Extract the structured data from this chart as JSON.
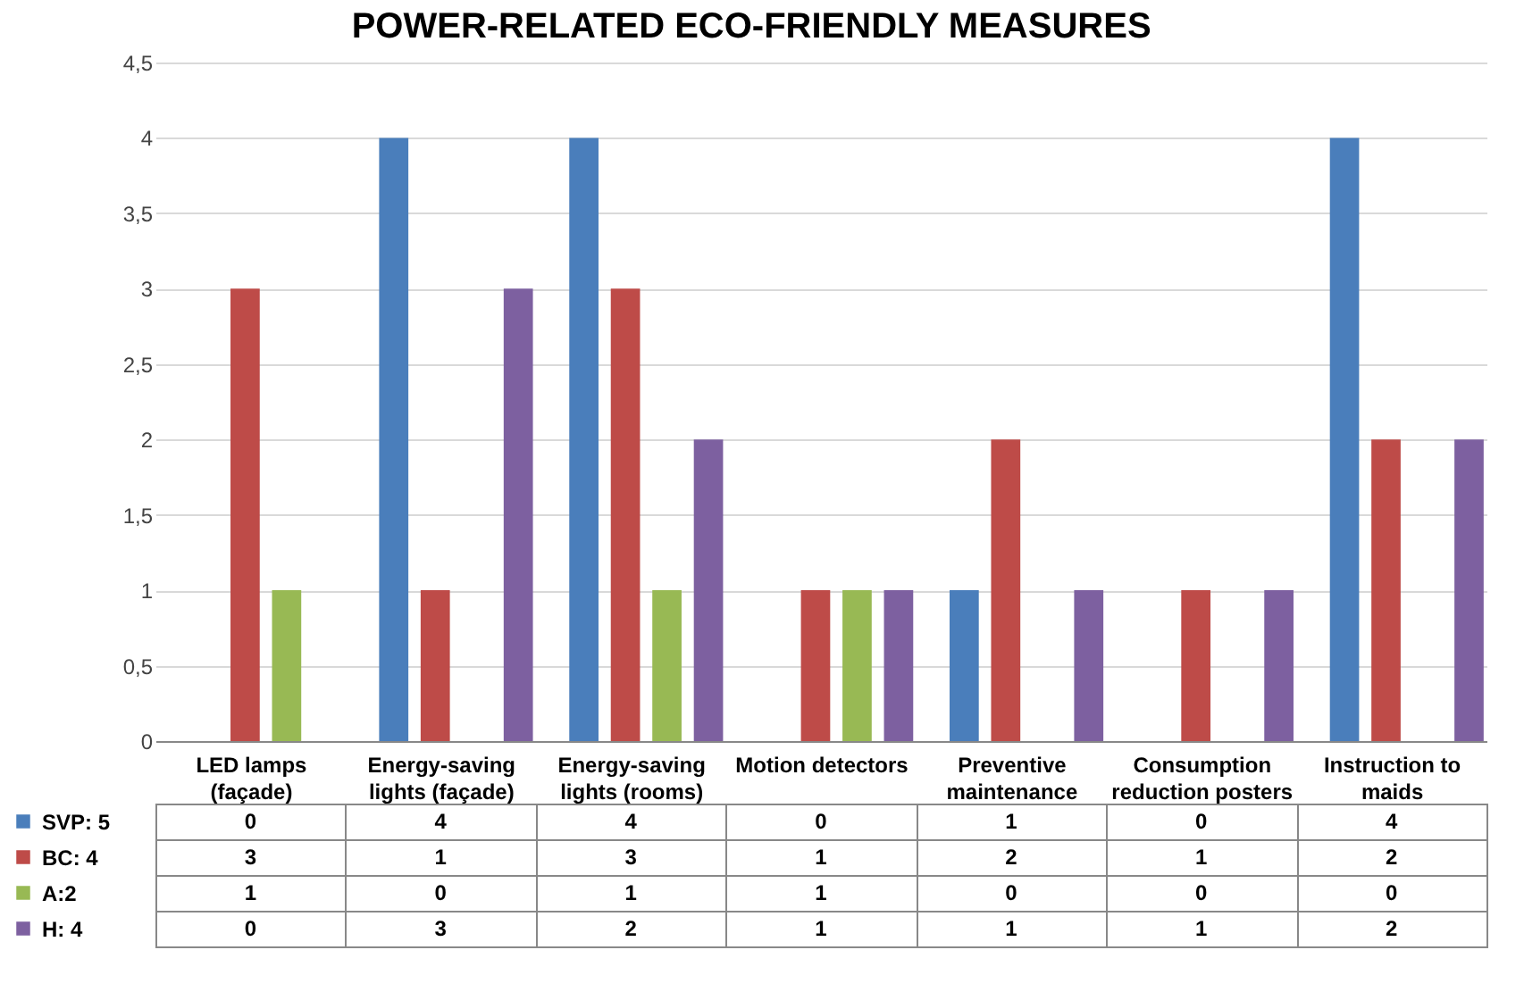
{
  "chart_data": {
    "type": "bar",
    "title": "POWER-RELATED ECO-FRIENDLY MEASURES",
    "categories": [
      "LED lamps (façade)",
      "Energy-saving lights (façade)",
      "Energy-saving lights (rooms)",
      "Motion detectors",
      "Preventive maintenance",
      "Consumption reduction posters",
      "Instruction to maids"
    ],
    "series": [
      {
        "name": "SVP: 5",
        "color": "#4a7ebb",
        "values": [
          0,
          4,
          4,
          0,
          1,
          0,
          4
        ]
      },
      {
        "name": "BC: 4",
        "color": "#be4b48",
        "values": [
          3,
          1,
          3,
          1,
          2,
          1,
          2
        ]
      },
      {
        "name": "A:2",
        "color": "#98b954",
        "values": [
          1,
          0,
          1,
          1,
          0,
          0,
          0
        ]
      },
      {
        "name": "H: 4",
        "color": "#7d60a0",
        "values": [
          0,
          3,
          2,
          1,
          1,
          1,
          2
        ]
      }
    ],
    "ylim": [
      0,
      4.5
    ],
    "yticks": [
      0,
      {
        "value": 0.5,
        "label": "0,5"
      },
      1,
      {
        "value": 1.5,
        "label": "1,5"
      },
      2,
      {
        "value": 2.5,
        "label": "2,5"
      },
      3,
      {
        "value": 3.5,
        "label": "3,5"
      },
      4,
      {
        "value": 4.5,
        "label": "4,5"
      }
    ],
    "grid": "y",
    "legend": "bottom left",
    "data_labels": true
  }
}
